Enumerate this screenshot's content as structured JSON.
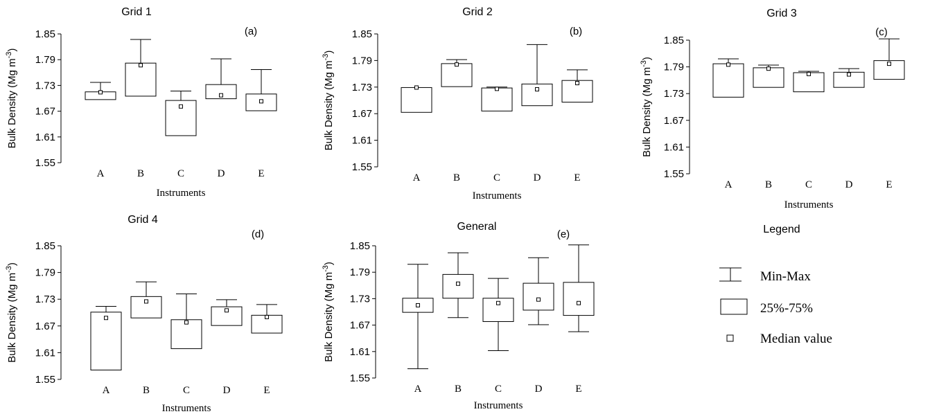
{
  "chart_data": [
    {
      "type": "box",
      "title": "Grid 1",
      "panel_label": "(a)",
      "xlabel": "Instruments",
      "ylabel": "Bulk Density (Mg m",
      "ylabel_sup": "-3",
      "ylabel_close": ")",
      "ylim": [
        1.55,
        1.85
      ],
      "yticks": [
        "1.85",
        "1.79",
        "1.73",
        "1.67",
        "1.61",
        "1.55"
      ],
      "categories": [
        "A",
        "B",
        "C",
        "D",
        "E"
      ],
      "boxes": [
        {
          "min": 1.697,
          "q1": 1.697,
          "median": 1.714,
          "q3": 1.715,
          "max": 1.737
        },
        {
          "min": 1.705,
          "q1": 1.705,
          "median": 1.777,
          "q3": 1.782,
          "max": 1.837
        },
        {
          "min": 1.613,
          "q1": 1.613,
          "median": 1.681,
          "q3": 1.695,
          "max": 1.717
        },
        {
          "min": 1.699,
          "q1": 1.699,
          "median": 1.707,
          "q3": 1.732,
          "max": 1.792
        },
        {
          "min": 1.671,
          "q1": 1.671,
          "median": 1.693,
          "q3": 1.71,
          "max": 1.767
        }
      ]
    },
    {
      "type": "box",
      "title": "Grid 2",
      "panel_label": "(b)",
      "xlabel": "Instruments",
      "ylabel": "Bulk Density (Mg m",
      "ylabel_sup": "-3",
      "ylabel_close": ")",
      "ylim": [
        1.55,
        1.85
      ],
      "yticks": [
        "1.85",
        "1.79",
        "1.73",
        "1.67",
        "1.61",
        "1.55"
      ],
      "categories": [
        "A",
        "B",
        "C",
        "D",
        "E"
      ],
      "boxes": [
        {
          "min": 1.673,
          "q1": 1.673,
          "median": 1.729,
          "q3": 1.729,
          "max": 1.729
        },
        {
          "min": 1.731,
          "q1": 1.731,
          "median": 1.781,
          "q3": 1.783,
          "max": 1.792
        },
        {
          "min": 1.676,
          "q1": 1.676,
          "median": 1.726,
          "q3": 1.728,
          "max": 1.73
        },
        {
          "min": 1.688,
          "q1": 1.688,
          "median": 1.725,
          "q3": 1.737,
          "max": 1.826
        },
        {
          "min": 1.696,
          "q1": 1.696,
          "median": 1.739,
          "q3": 1.745,
          "max": 1.769
        }
      ]
    },
    {
      "type": "box",
      "title": "Grid 3",
      "panel_label": "(c)",
      "xlabel": "Instruments",
      "ylabel": "Bulk Density (Mg m",
      "ylabel_sup": "-3",
      "ylabel_close": ")",
      "ylim": [
        1.55,
        1.85
      ],
      "yticks": [
        "1.85",
        "1.79",
        "1.73",
        "1.67",
        "1.61",
        "1.55"
      ],
      "categories": [
        "A",
        "B",
        "C",
        "D",
        "E"
      ],
      "boxes": [
        {
          "min": 1.722,
          "q1": 1.722,
          "median": 1.795,
          "q3": 1.797,
          "max": 1.808
        },
        {
          "min": 1.744,
          "q1": 1.744,
          "median": 1.786,
          "q3": 1.788,
          "max": 1.794
        },
        {
          "min": 1.734,
          "q1": 1.734,
          "median": 1.774,
          "q3": 1.777,
          "max": 1.78
        },
        {
          "min": 1.744,
          "q1": 1.744,
          "median": 1.773,
          "q3": 1.778,
          "max": 1.786
        },
        {
          "min": 1.762,
          "q1": 1.762,
          "median": 1.797,
          "q3": 1.804,
          "max": 1.853
        }
      ]
    },
    {
      "type": "box",
      "title": "Grid 4",
      "panel_label": "(d)",
      "xlabel": "Instruments",
      "ylabel": "Bulk Density (Mg m",
      "ylabel_sup": "-3",
      "ylabel_close": ")",
      "ylim": [
        1.55,
        1.85
      ],
      "yticks": [
        "1.85",
        "1.79",
        "1.73",
        "1.67",
        "1.61",
        "1.55"
      ],
      "categories": [
        "A",
        "B",
        "C",
        "D",
        "E"
      ],
      "boxes": [
        {
          "min": 1.571,
          "q1": 1.571,
          "median": 1.688,
          "q3": 1.701,
          "max": 1.714
        },
        {
          "min": 1.688,
          "q1": 1.688,
          "median": 1.725,
          "q3": 1.736,
          "max": 1.769
        },
        {
          "min": 1.619,
          "q1": 1.619,
          "median": 1.678,
          "q3": 1.684,
          "max": 1.742
        },
        {
          "min": 1.671,
          "q1": 1.671,
          "median": 1.705,
          "q3": 1.713,
          "max": 1.729
        },
        {
          "min": 1.654,
          "q1": 1.654,
          "median": 1.69,
          "q3": 1.694,
          "max": 1.718
        }
      ]
    },
    {
      "type": "box",
      "title": "General",
      "panel_label": "(e)",
      "xlabel": "Instruments",
      "ylabel": "Bulk Density (Mg m",
      "ylabel_sup": "-3",
      "ylabel_close": ")",
      "ylim": [
        1.55,
        1.85
      ],
      "yticks": [
        "1.85",
        "1.79",
        "1.73",
        "1.67",
        "1.61",
        "1.55"
      ],
      "categories": [
        "A",
        "B",
        "C",
        "D",
        "E"
      ],
      "boxes": [
        {
          "min": 1.571,
          "q1": 1.699,
          "median": 1.715,
          "q3": 1.731,
          "max": 1.808
        },
        {
          "min": 1.687,
          "q1": 1.731,
          "median": 1.764,
          "q3": 1.785,
          "max": 1.834
        },
        {
          "min": 1.612,
          "q1": 1.678,
          "median": 1.72,
          "q3": 1.731,
          "max": 1.776
        },
        {
          "min": 1.671,
          "q1": 1.704,
          "median": 1.728,
          "q3": 1.765,
          "max": 1.823
        },
        {
          "min": 1.655,
          "q1": 1.692,
          "median": 1.72,
          "q3": 1.767,
          "max": 1.852
        }
      ]
    }
  ],
  "legend": {
    "title": "Legend",
    "items": [
      {
        "icon": "min-max-whisker-icon",
        "label": "Min-Max"
      },
      {
        "icon": "box-icon",
        "label": "25%-75%"
      },
      {
        "icon": "median-square-icon",
        "label": "Median value"
      }
    ]
  }
}
